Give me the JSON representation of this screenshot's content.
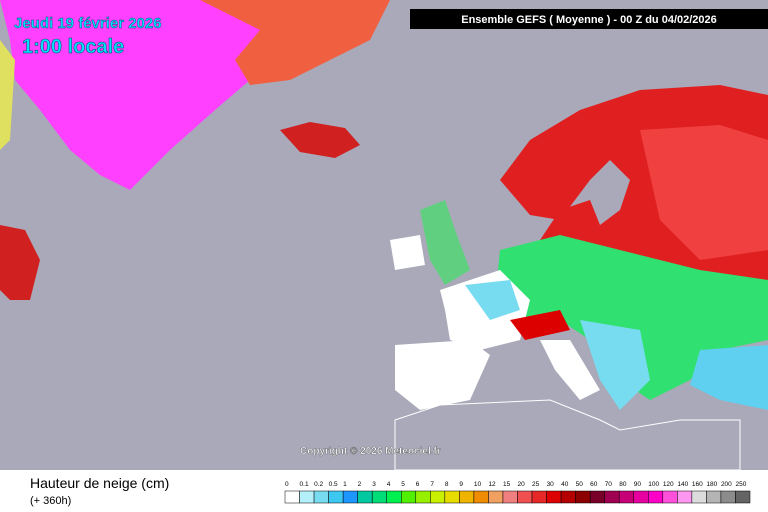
{
  "header": {
    "date": "Jeudi 19 février 2026",
    "time": "1:00 locale",
    "model": "Ensemble GEFS  ( Moyenne )  -  00 Z du 04/02/2026"
  },
  "copyright": "Copyright © 2026 Meteociel.fr",
  "legend": {
    "title": "Hauteur de neige (cm)",
    "lead": "(+ 360h)",
    "items": [
      {
        "label": "0",
        "color": "#ffffff"
      },
      {
        "label": "0.1",
        "color": "#b4f0fa"
      },
      {
        "label": "0.2",
        "color": "#78dcf0"
      },
      {
        "label": "0.5",
        "color": "#3cc8f0"
      },
      {
        "label": "1",
        "color": "#1e96ff"
      },
      {
        "label": "2",
        "color": "#00c8a0"
      },
      {
        "label": "3",
        "color": "#00dc78"
      },
      {
        "label": "4",
        "color": "#00f050"
      },
      {
        "label": "5",
        "color": "#50f000"
      },
      {
        "label": "6",
        "color": "#96f000"
      },
      {
        "label": "7",
        "color": "#c8f000"
      },
      {
        "label": "8",
        "color": "#e6dc00"
      },
      {
        "label": "9",
        "color": "#f0b400"
      },
      {
        "label": "10",
        "color": "#f08c00"
      },
      {
        "label": "12",
        "color": "#f0a060"
      },
      {
        "label": "15",
        "color": "#f08080"
      },
      {
        "label": "20",
        "color": "#f05050"
      },
      {
        "label": "25",
        "color": "#e62828"
      },
      {
        "label": "30",
        "color": "#dc0000"
      },
      {
        "label": "40",
        "color": "#b40000"
      },
      {
        "label": "50",
        "color": "#8c0000"
      },
      {
        "label": "60",
        "color": "#780028"
      },
      {
        "label": "70",
        "color": "#a00050"
      },
      {
        "label": "80",
        "color": "#c80078"
      },
      {
        "label": "90",
        "color": "#e600a0"
      },
      {
        "label": "100",
        "color": "#ff00c8"
      },
      {
        "label": "120",
        "color": "#ff50dc"
      },
      {
        "label": "140",
        "color": "#ff96f0"
      },
      {
        "label": "160",
        "color": "#dcdcdc"
      },
      {
        "label": "180",
        "color": "#b4b4b4"
      },
      {
        "label": "200",
        "color": "#8c8c8c"
      },
      {
        "label": "250",
        "color": "#646464"
      }
    ]
  }
}
